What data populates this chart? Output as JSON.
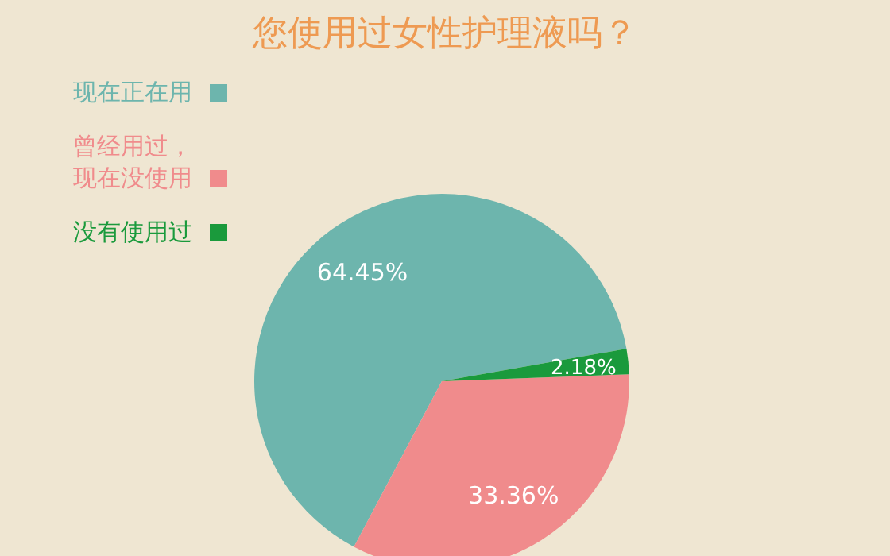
{
  "chart_data": {
    "type": "pie",
    "title": "您使用过女性护理液吗？",
    "categories": [
      "现在正在用",
      "曾经用过，现在没使用",
      "没有使用过"
    ],
    "values": [
      64.45,
      33.36,
      2.18
    ],
    "colors": [
      "#6db5ad",
      "#f08b8c",
      "#1a9a3c"
    ],
    "value_labels": [
      "64.45%",
      "33.36%",
      "2.18%"
    ],
    "legend": "left"
  }
}
